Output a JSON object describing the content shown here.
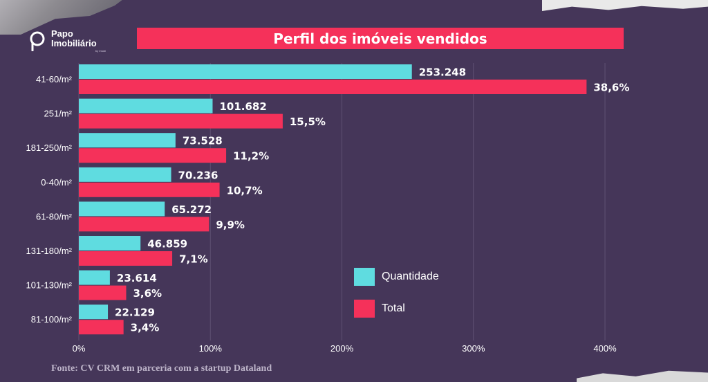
{
  "logo": {
    "line1": "Papo",
    "line2": "Imobiliário",
    "sub": "by Imobi"
  },
  "colors": {
    "background": "#453659",
    "quantidade": "#5fdce0",
    "total": "#f5315a",
    "grid": "#5f5173"
  },
  "chart_data": {
    "type": "bar",
    "orientation": "horizontal",
    "title": "Perfil dos imóveis vendidos",
    "categories": [
      "41-60/m²",
      "251/m²",
      "181-250/m²",
      "0-40/m²",
      "61-80/m²",
      "131-180/m²",
      "101-130/m²",
      "81-100/m²"
    ],
    "series": [
      {
        "name": "Quantidade",
        "values": [
          253248,
          101682,
          73528,
          70236,
          65272,
          46859,
          23614,
          22129
        ],
        "labels": [
          "253.248",
          "101.682",
          "73.528",
          "70.236",
          "65.272",
          "46.859",
          "23.614",
          "22.129"
        ],
        "axis_percent": [
          253.2,
          101.7,
          73.5,
          70.2,
          65.3,
          46.9,
          23.6,
          22.1
        ]
      },
      {
        "name": "Total",
        "values": [
          38.6,
          15.5,
          11.2,
          10.7,
          9.9,
          7.1,
          3.6,
          3.4
        ],
        "labels": [
          "38,6%",
          "15,5%",
          "11,2%",
          "10,7%",
          "9,9%",
          "7,1%",
          "3,6%",
          "3,4%"
        ],
        "axis_percent": [
          386,
          155,
          112,
          107,
          99,
          71,
          36,
          34
        ]
      }
    ],
    "xlim": [
      0,
      400
    ],
    "xticks": [
      0,
      100,
      200,
      300,
      400
    ],
    "xtick_labels": [
      "0%",
      "100%",
      "200%",
      "300%",
      "400%"
    ],
    "grid": "vertical",
    "legend_position": "right"
  },
  "source": "Fonte: CV CRM em parceria com a startup Dataland"
}
